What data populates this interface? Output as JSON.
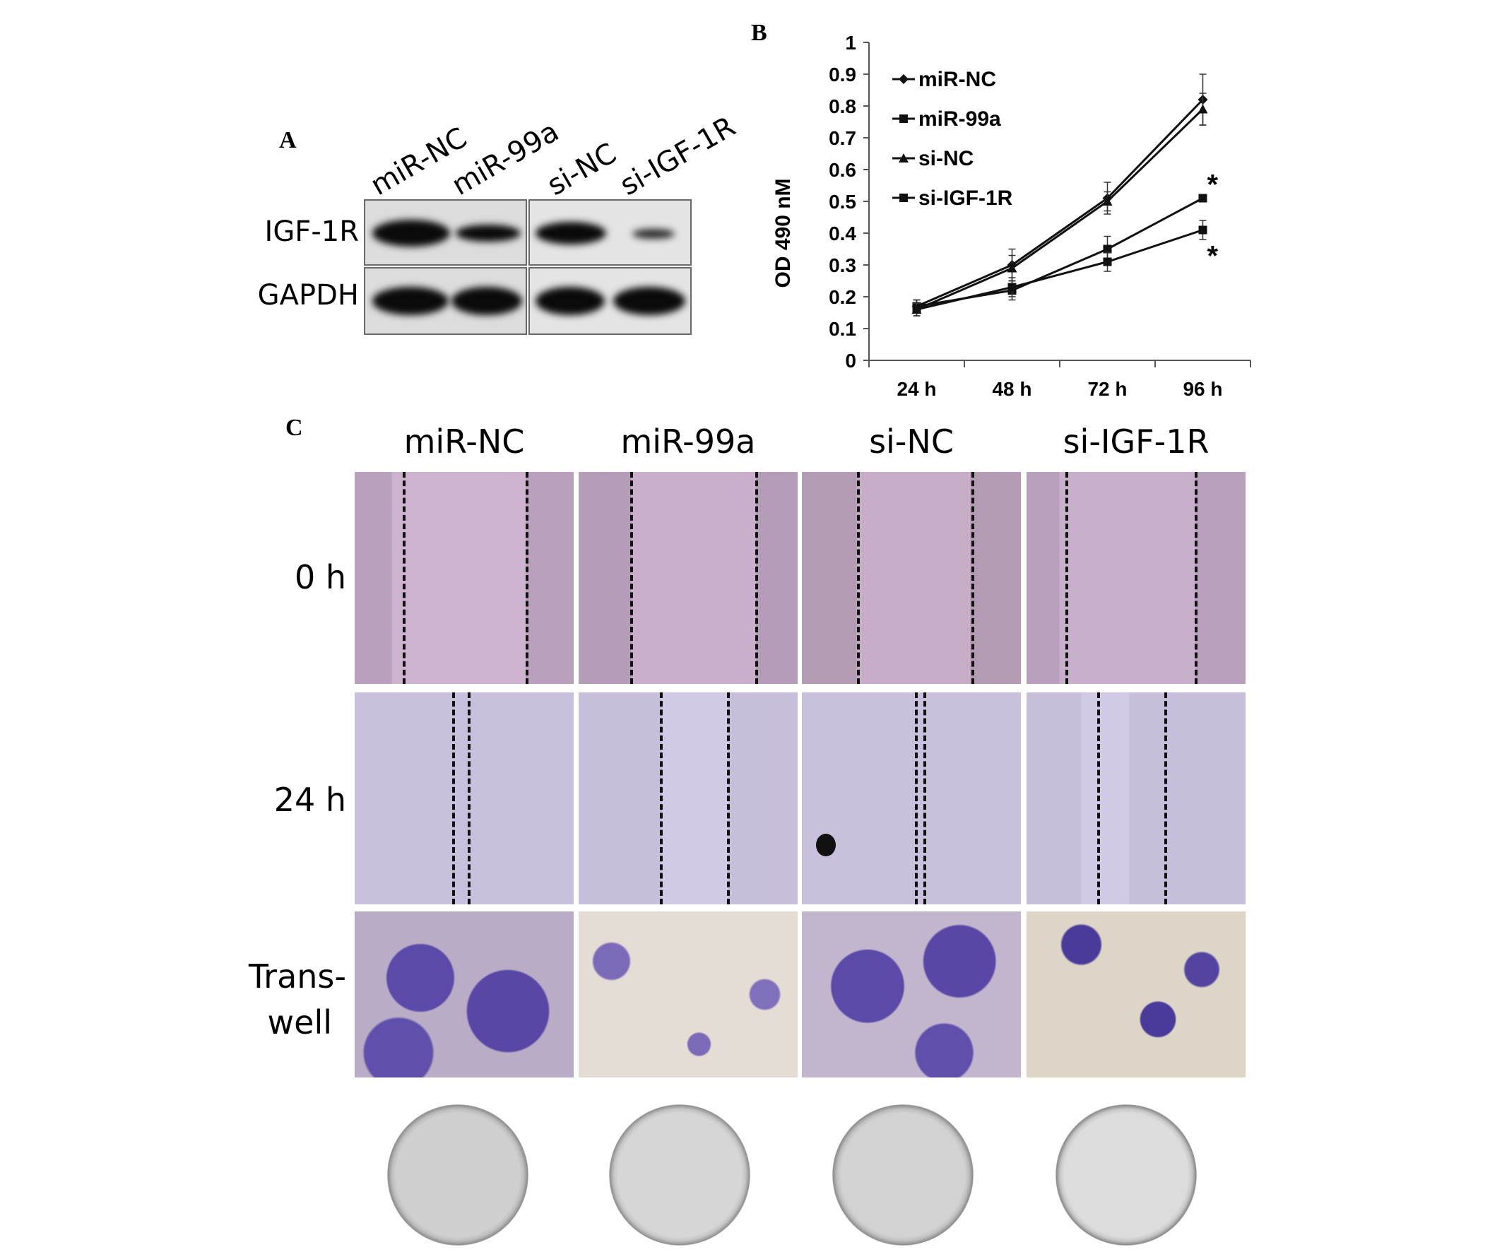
{
  "panels": {
    "a": "A",
    "b": "B",
    "c": "C"
  },
  "western_blot": {
    "lanes": [
      "miR-NC",
      "miR-99a",
      "si-NC",
      "si-IGF-1R"
    ],
    "rows": [
      "IGF-1R",
      "GAPDH"
    ]
  },
  "chart_data": {
    "type": "line",
    "ylabel": "OD 490 nM",
    "ylim": [
      0,
      1
    ],
    "yticks": [
      "0",
      "0.1",
      "0.2",
      "0.3",
      "0.4",
      "0.5",
      "0.6",
      "0.7",
      "0.8",
      "0.9",
      "1"
    ],
    "categories": [
      "24 h",
      "48 h",
      "72 h",
      "96 h"
    ],
    "legend_position": "top-left",
    "series": [
      {
        "name": "miR-NC",
        "marker": "diamond",
        "values": [
          0.17,
          0.3,
          0.51,
          0.82
        ],
        "errors": [
          0.02,
          0.05,
          0.05,
          0.08
        ]
      },
      {
        "name": "miR-99a",
        "marker": "square",
        "values": [
          0.17,
          0.22,
          0.35,
          0.51
        ],
        "errors": [
          0.02,
          0.03,
          0.04,
          0.0
        ]
      },
      {
        "name": "si-NC",
        "marker": "triangle",
        "values": [
          0.16,
          0.29,
          0.5,
          0.79
        ],
        "errors": [
          0.02,
          0.04,
          0.03,
          0.05
        ]
      },
      {
        "name": "si-IGF-1R",
        "marker": "square",
        "values": [
          0.16,
          0.23,
          0.31,
          0.41
        ],
        "errors": [
          0.02,
          0.03,
          0.03,
          0.03
        ]
      }
    ],
    "annotations": [
      "*",
      "*"
    ]
  },
  "migration": {
    "columns": [
      "miR-NC",
      "miR-99a",
      "si-NC",
      "si-IGF-1R"
    ],
    "rows": [
      "0 h",
      "24 h",
      "Trans-",
      "well"
    ]
  }
}
